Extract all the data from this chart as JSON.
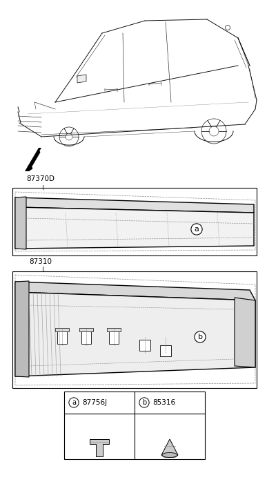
{
  "bg_color": "#ffffff",
  "label_87370D": "87370D",
  "label_87310": "87310",
  "part_a_code": "87756J",
  "part_b_code": "85316",
  "circle_a": "a",
  "circle_b": "b",
  "line_color": "#111111",
  "gray_light": "#e8e8e8",
  "gray_mid": "#cccccc",
  "gray_dark": "#999999"
}
